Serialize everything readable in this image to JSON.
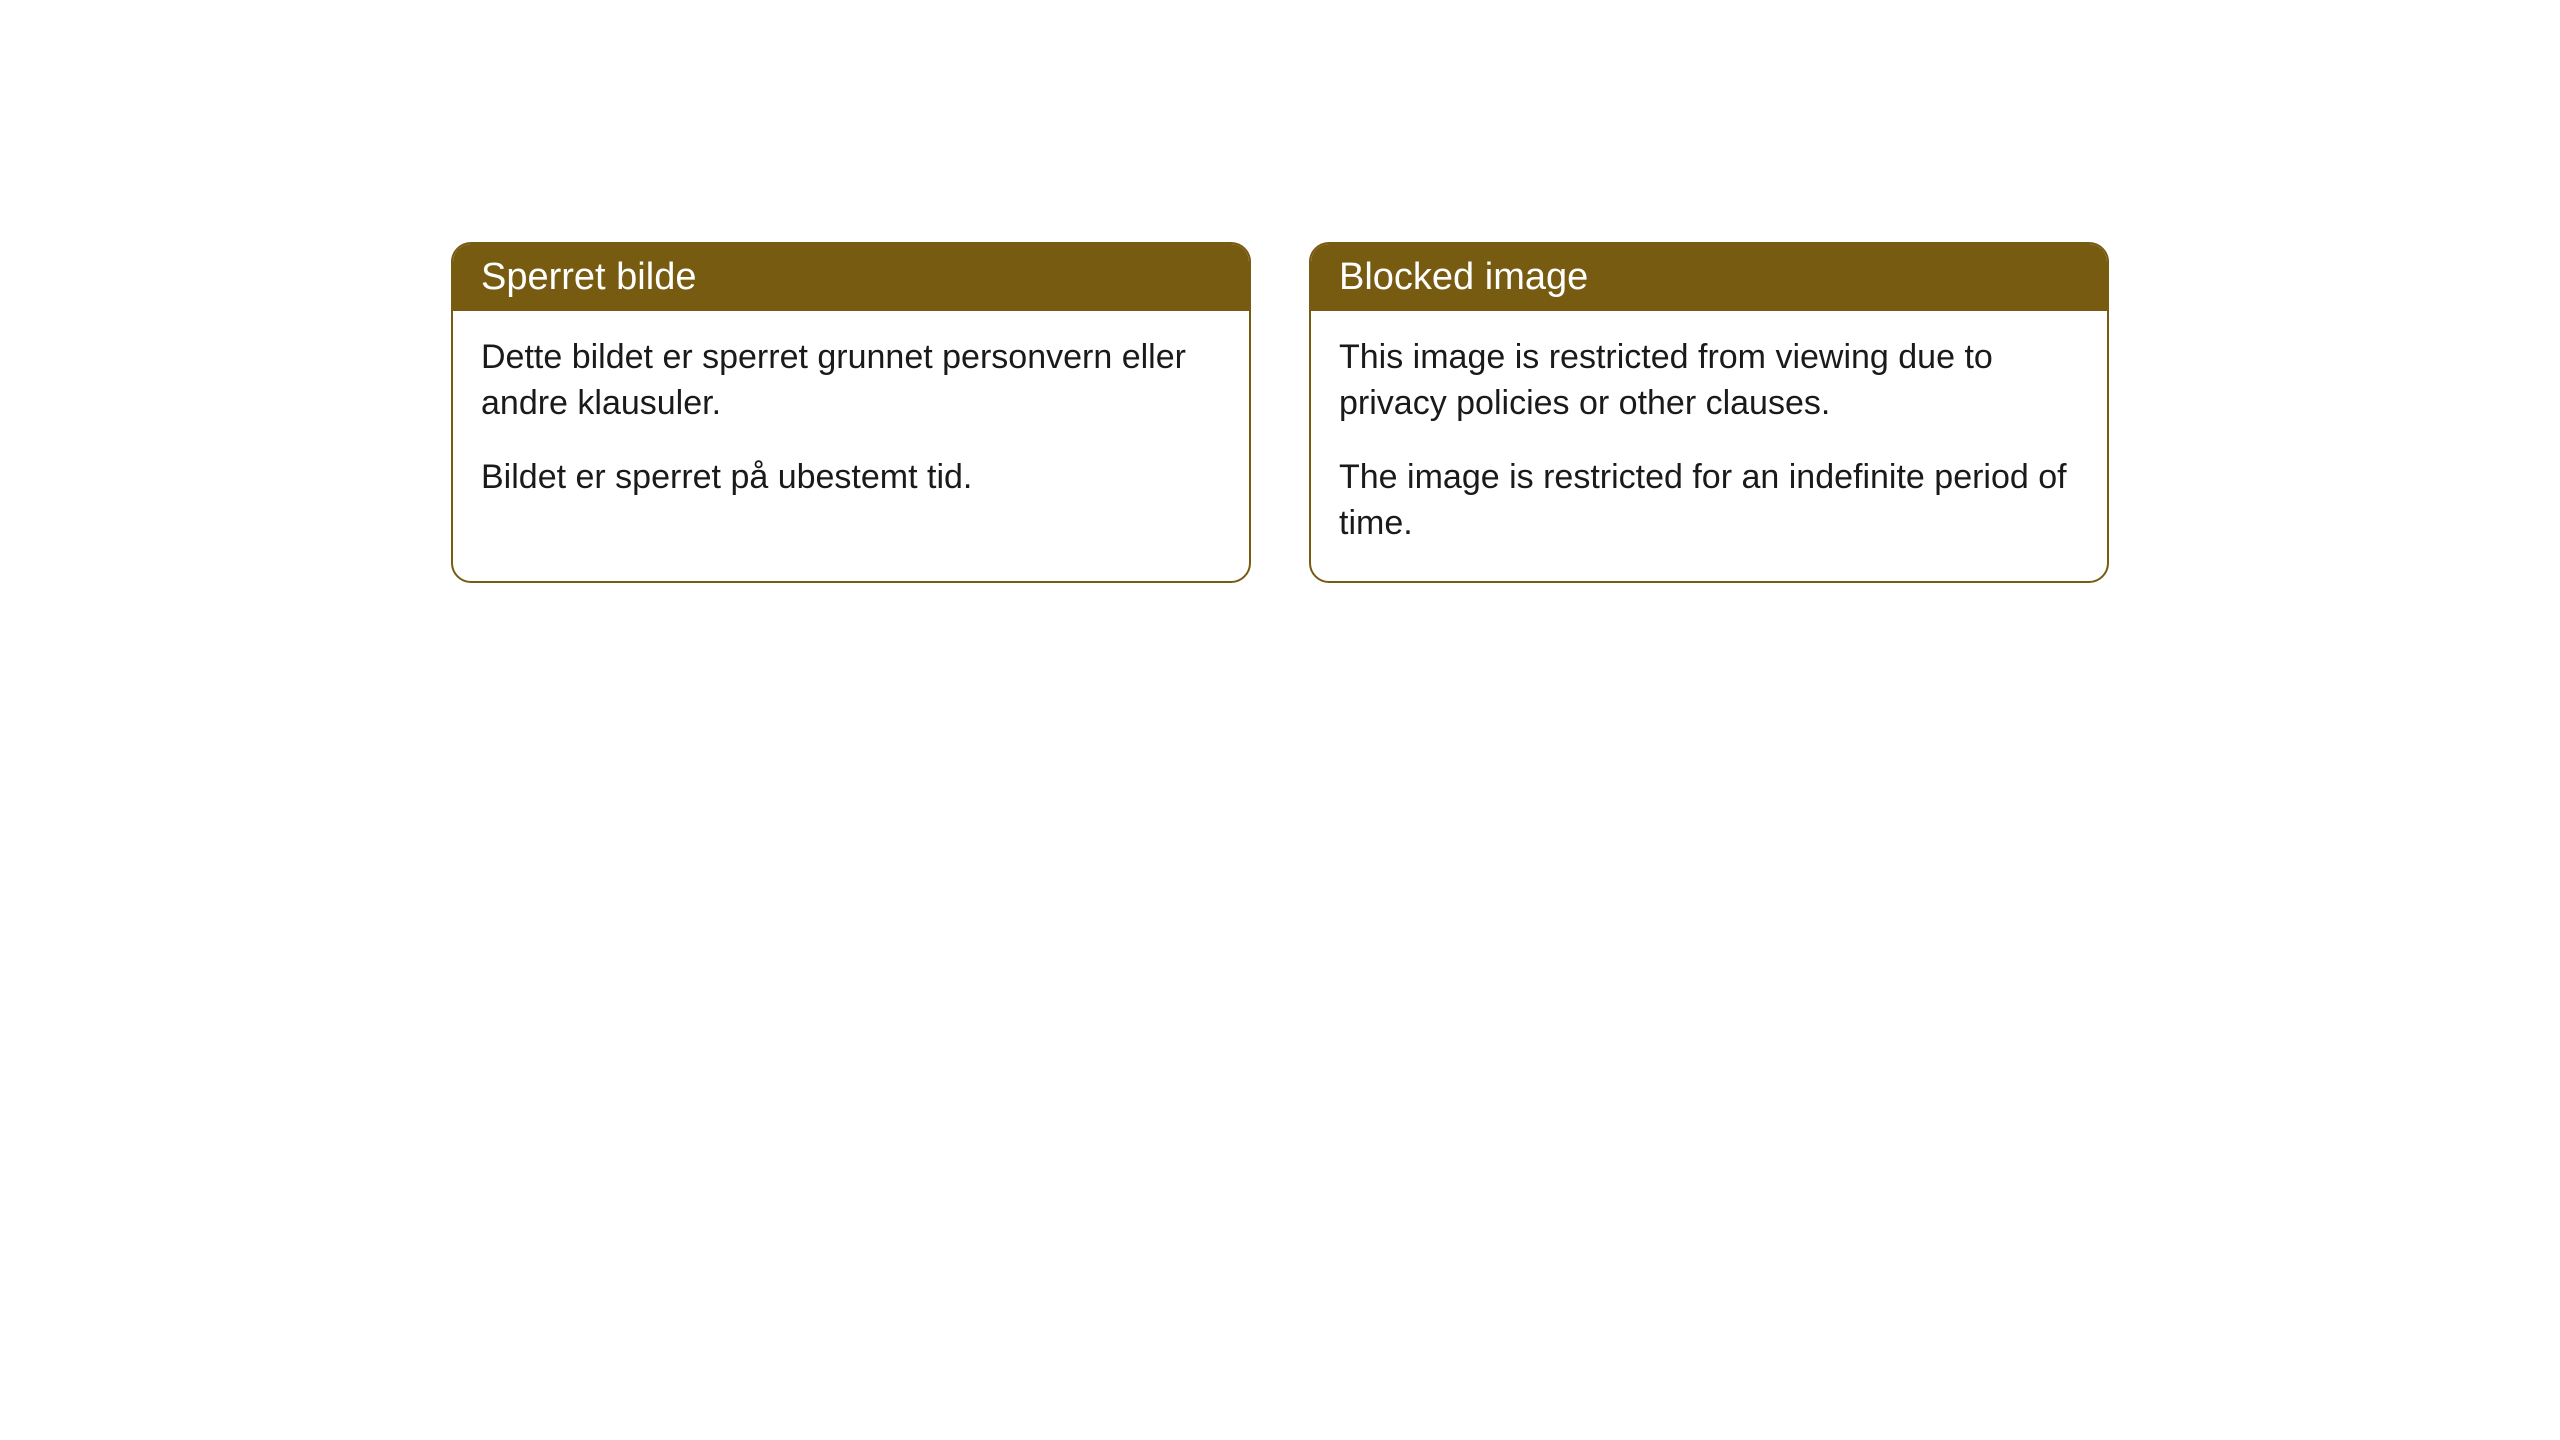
{
  "cards": [
    {
      "title": "Sperret bilde",
      "paragraph1": "Dette bildet er sperret grunnet personvern eller andre klausuler.",
      "paragraph2": "Bildet er sperret på ubestemt tid."
    },
    {
      "title": "Blocked image",
      "paragraph1": "This image is restricted from viewing due to privacy policies or other clauses.",
      "paragraph2": "The image is restricted for an indefinite period of time."
    }
  ],
  "style": {
    "header_background": "#775b11",
    "header_text_color": "#ffffff",
    "border_color": "#775b11",
    "body_background": "#ffffff",
    "body_text_color": "#1a1a1a",
    "border_radius": 20,
    "title_fontsize": 38,
    "body_fontsize": 34
  }
}
